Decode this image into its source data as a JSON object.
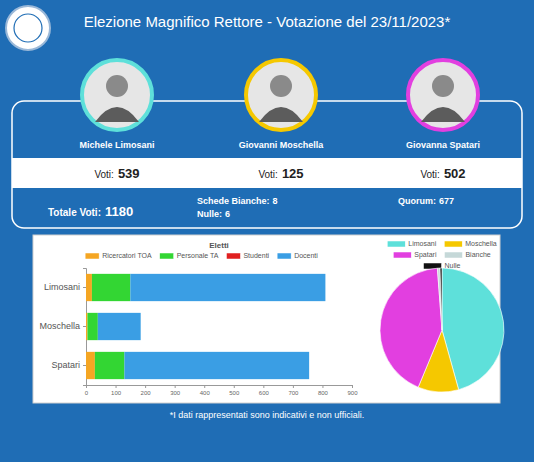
{
  "header": {
    "title": "Elezione Magnifico Rettore - Votazione del 23/11/2023*"
  },
  "candidates": [
    {
      "name": "Michele Limosani",
      "votes_label": "Voti:",
      "votes": 539
    },
    {
      "name": "Giovanni Moschella",
      "votes_label": "Voti:",
      "votes": 125
    },
    {
      "name": "Giovanna Spatari",
      "votes_label": "Voti:",
      "votes": 502
    }
  ],
  "summary": {
    "total_label": "Totale Voti:",
    "total": 1180,
    "blank_label": "Schede Bianche:",
    "blank": 8,
    "null_label": "Nulle:",
    "null": 6,
    "quorum_label": "Quorum:",
    "quorum": 677
  },
  "footnote": "*I dati rappresentati sono indicativi e non ufficiali.",
  "chart_data": [
    {
      "type": "bar",
      "title": "Eletti",
      "orientation": "horizontal",
      "stacked": true,
      "legend": "top",
      "grid": false,
      "categories": [
        "Limosani",
        "Moschella",
        "Spatari"
      ],
      "series": [
        {
          "name": "Ricercatori TOA",
          "color": "#f5a623",
          "values": [
            20,
            5,
            30
          ]
        },
        {
          "name": "Personale TA",
          "color": "#33d633",
          "values": [
            130,
            35,
            100
          ]
        },
        {
          "name": "Studenti",
          "color": "#e02020",
          "values": [
            0,
            0,
            0
          ]
        },
        {
          "name": "Docenti",
          "color": "#3a9ee4",
          "values": [
            660,
            145,
            625
          ]
        }
      ],
      "xlim": [
        0,
        900
      ],
      "xticks": [
        0,
        100,
        200,
        300,
        400,
        500,
        600,
        700,
        800,
        900
      ]
    },
    {
      "type": "pie",
      "legend": "top",
      "categories": [
        "Limosani",
        "Moschella",
        "Spatari",
        "Bianche",
        "Nulle"
      ],
      "values": [
        539,
        125,
        502,
        8,
        6
      ],
      "colors": [
        "#5ee0da",
        "#f5c800",
        "#e23fe0",
        "#c5d8d8",
        "#111111"
      ]
    }
  ]
}
